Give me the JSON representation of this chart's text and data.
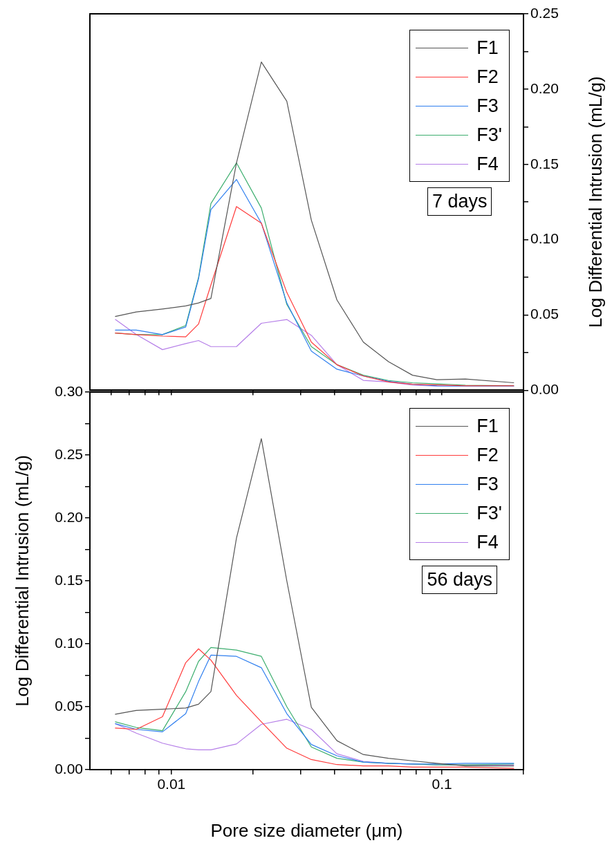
{
  "chart_data": [
    {
      "type": "line",
      "xlim": [
        0.005,
        0.2
      ],
      "xticks": [
        {
          "value": 0.006,
          "label": null
        },
        {
          "value": 0.007,
          "label": null
        },
        {
          "value": 0.008,
          "label": null
        },
        {
          "value": 0.009,
          "label": null
        },
        {
          "value": 0.01,
          "label": null
        },
        {
          "value": 0.02,
          "label": null
        },
        {
          "value": 0.03,
          "label": null
        },
        {
          "value": 0.04,
          "label": null
        },
        {
          "value": 0.05,
          "label": null
        },
        {
          "value": 0.06,
          "label": null
        },
        {
          "value": 0.07,
          "label": null
        },
        {
          "value": 0.08,
          "label": null
        },
        {
          "value": 0.09,
          "label": null
        },
        {
          "value": 0.1,
          "label": null
        },
        {
          "value": 0.2,
          "label": null
        }
      ],
      "log": "x",
      "ylim": [
        0,
        0.25
      ],
      "yticks": [
        {
          "value": 0,
          "label": "0.00"
        },
        {
          "value": 0.025,
          "label": null
        },
        0.05,
        {
          "value": 0.075,
          "label": null
        },
        {
          "value": 0.1,
          "label": "0.10"
        },
        {
          "value": 0.125,
          "label": null
        },
        0.15,
        {
          "value": 0.175,
          "label": null
        },
        {
          "value": 0.2,
          "label": "0.20"
        },
        {
          "value": 0.225,
          "label": null
        },
        0.25
      ],
      "ylabel": "Log Differential Intrusion (mL/g)",
      "tick_labels": "y",
      "grid": false,
      "legend": "top right",
      "marker": "none",
      "line_style": "solid",
      "annotations": [
        "7 days"
      ],
      "x": [
        0.00621,
        0.00742,
        0.00927,
        0.0113,
        0.0126,
        0.014,
        0.0174,
        0.0215,
        0.0267,
        0.0329,
        0.0409,
        0.0512,
        0.0634,
        0.0778,
        0.0957,
        0.122,
        0.184
      ],
      "series": [
        {
          "name": "F1",
          "color": "#555555",
          "values": [
            0.049,
            0.052,
            0.054,
            0.056,
            0.058,
            0.061,
            0.151,
            0.218,
            0.192,
            0.113,
            0.06,
            0.032,
            0.019,
            0.01,
            0.007,
            0.0075,
            0.005
          ]
        },
        {
          "name": "F2",
          "color": "#ff3b3b",
          "values": [
            0.038,
            0.037,
            0.036,
            0.0355,
            0.044,
            0.07,
            0.122,
            0.111,
            0.065,
            0.032,
            0.017,
            0.0095,
            0.0055,
            0.004,
            0.0036,
            0.003,
            0.003
          ]
        },
        {
          "name": "F3",
          "color": "#2f7fef",
          "values": [
            0.04,
            0.04,
            0.037,
            0.042,
            0.074,
            0.12,
            0.14,
            0.111,
            0.058,
            0.026,
            0.014,
            0.0095,
            0.006,
            0.004,
            0.003,
            0.0027,
            0.0027
          ]
        },
        {
          "name": "F3'",
          "color": "#3cae6e",
          "values": [
            0.038,
            0.037,
            0.037,
            0.043,
            0.075,
            0.124,
            0.151,
            0.121,
            0.057,
            0.029,
            0.017,
            0.01,
            0.0065,
            0.005,
            0.0043,
            0.0034,
            0.003
          ]
        },
        {
          "name": "F4",
          "color": "#b57ee8",
          "values": [
            0.047,
            0.037,
            0.027,
            0.031,
            0.033,
            0.029,
            0.029,
            0.0445,
            0.047,
            0.0365,
            0.017,
            0.0066,
            0.0055,
            0.0034,
            0.0027,
            0.0027,
            0.0027
          ]
        }
      ]
    },
    {
      "type": "line",
      "xlim": [
        0.005,
        0.2
      ],
      "xticks": [
        {
          "value": 0.006,
          "label": null
        },
        {
          "value": 0.007,
          "label": null
        },
        {
          "value": 0.008,
          "label": null
        },
        {
          "value": 0.009,
          "label": null
        },
        0.01,
        {
          "value": 0.02,
          "label": null
        },
        {
          "value": 0.03,
          "label": null
        },
        {
          "value": 0.04,
          "label": null
        },
        {
          "value": 0.05,
          "label": null
        },
        {
          "value": 0.06,
          "label": null
        },
        {
          "value": 0.07,
          "label": null
        },
        {
          "value": 0.08,
          "label": null
        },
        {
          "value": 0.09,
          "label": null
        },
        0.1,
        {
          "value": 0.2,
          "label": null
        }
      ],
      "log": "x",
      "ylim": [
        0,
        0.3
      ],
      "yticks": [
        {
          "value": 0,
          "label": "0.00"
        },
        {
          "value": 0.025,
          "label": null
        },
        0.05,
        {
          "value": 0.075,
          "label": null
        },
        {
          "value": 0.1,
          "label": "0.10"
        },
        {
          "value": 0.125,
          "label": null
        },
        0.15,
        {
          "value": 0.175,
          "label": null
        },
        {
          "value": 0.2,
          "label": "0.20"
        },
        {
          "value": 0.225,
          "label": null
        },
        0.25,
        {
          "value": 0.275,
          "label": null
        },
        {
          "value": 0.3,
          "label": "0.30"
        }
      ],
      "xlabel": "Pore size diameter (μm)",
      "ylabel": "Log Differential Intrusion (mL/g)",
      "grid": false,
      "legend": "top right",
      "marker": "none",
      "line_style": "solid",
      "annotations": [
        "56 days"
      ],
      "x": [
        0.00621,
        0.00742,
        0.00927,
        0.0113,
        0.0126,
        0.014,
        0.0174,
        0.0215,
        0.0267,
        0.0329,
        0.0409,
        0.0512,
        0.0634,
        0.0778,
        0.0957,
        0.122,
        0.184
      ],
      "series": [
        {
          "name": "F1",
          "color": "#555555",
          "values": [
            0.044,
            0.047,
            0.048,
            0.049,
            0.052,
            0.062,
            0.184,
            0.263,
            0.15,
            0.0495,
            0.023,
            0.012,
            0.009,
            0.007,
            0.005,
            0.003,
            0.003
          ]
        },
        {
          "name": "F2",
          "color": "#ff3b3b",
          "values": [
            0.033,
            0.032,
            0.042,
            0.085,
            0.096,
            0.087,
            0.059,
            0.038,
            0.017,
            0.008,
            0.004,
            0.003,
            0.003,
            0.002,
            0.002,
            0.002,
            0.001
          ]
        },
        {
          "name": "F3",
          "color": "#2f7fef",
          "values": [
            0.0365,
            0.032,
            0.03,
            0.0445,
            0.07,
            0.091,
            0.09,
            0.081,
            0.0445,
            0.02,
            0.011,
            0.006,
            0.005,
            0.0045,
            0.0045,
            0.005,
            0.005
          ]
        },
        {
          "name": "F3'",
          "color": "#3cae6e",
          "values": [
            0.038,
            0.0335,
            0.031,
            0.062,
            0.086,
            0.097,
            0.095,
            0.09,
            0.05,
            0.018,
            0.009,
            0.006,
            0.005,
            0.0044,
            0.0038,
            0.0038,
            0.0045
          ]
        },
        {
          "name": "F4",
          "color": "#b57ee8",
          "values": [
            0.0365,
            0.029,
            0.021,
            0.0166,
            0.0157,
            0.0157,
            0.0204,
            0.036,
            0.04,
            0.032,
            0.0126,
            0.0066,
            0.005,
            0.0045,
            0.0038,
            0.0038,
            0.0038
          ]
        }
      ]
    }
  ]
}
